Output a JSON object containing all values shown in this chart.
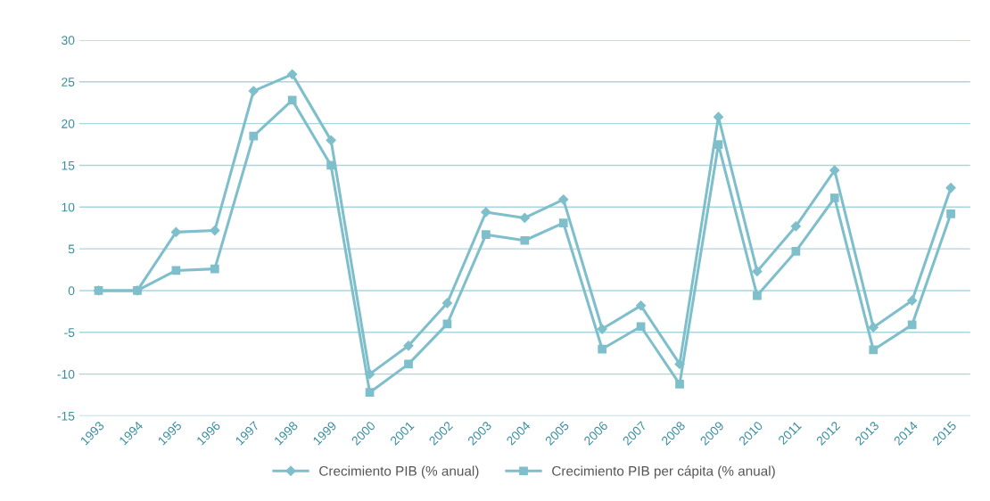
{
  "chart_data": {
    "type": "line",
    "categories": [
      "1993",
      "1994",
      "1995",
      "1996",
      "1997",
      "1998",
      "1999",
      "2000",
      "2001",
      "2002",
      "2003",
      "2004",
      "2005",
      "2006",
      "2007",
      "2008",
      "2009",
      "2010",
      "2011",
      "2012",
      "2013",
      "2014",
      "2015"
    ],
    "series": [
      {
        "name": "Crecimiento PIB (% anual)",
        "color": "#7fbfcb",
        "marker": "diamond",
        "values": [
          0,
          0,
          7.0,
          7.2,
          23.9,
          25.9,
          18.0,
          -10.0,
          -6.6,
          -1.5,
          9.4,
          8.7,
          10.9,
          -4.6,
          -1.8,
          -8.8,
          20.8,
          2.3,
          7.7,
          14.4,
          -4.4,
          -1.2,
          12.3
        ]
      },
      {
        "name": "Crecimiento PIB per cápita (% anual)",
        "color": "#7fbfcb",
        "marker": "square",
        "values": [
          0,
          0,
          2.4,
          2.6,
          18.5,
          22.8,
          15.0,
          -12.2,
          -8.8,
          -4.0,
          6.7,
          6.0,
          8.1,
          -7.0,
          -4.3,
          -11.2,
          17.5,
          -0.6,
          4.7,
          11.1,
          -7.1,
          -4.1,
          9.2
        ]
      }
    ],
    "ylim": [
      -15,
      30
    ],
    "yticks": [
      -15,
      -10,
      -5,
      0,
      5,
      10,
      15,
      20,
      25,
      30
    ],
    "grid": "y",
    "legend": "bottom",
    "line_style": "solid"
  }
}
